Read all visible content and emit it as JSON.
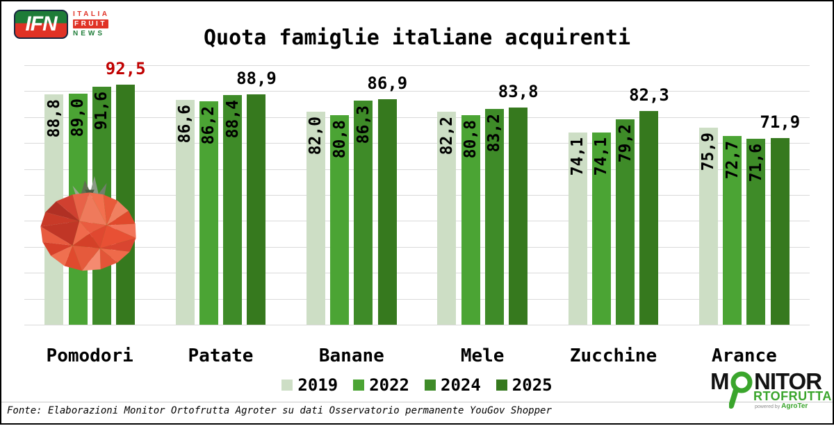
{
  "page": {
    "source": "Fonte: Elaborazioni Monitor Ortofrutta Agroter su dati Osservatorio permanente YouGov Shopper"
  },
  "logos": {
    "ifn": {
      "badge": "IFN",
      "line1": "ITALIA",
      "line2": "FRUIT",
      "line3": "NEWS"
    },
    "monitor": {
      "m": "M",
      "nitor": "NITOR",
      "rtofrutta": "RTOFRUTTA",
      "powered_by": "powered by",
      "agroter": "AgroTer",
      "magnifier_color": "#3aa52c"
    }
  },
  "chart_data": {
    "type": "bar",
    "title": "Quota famiglie italiane acquirenti",
    "categories": [
      "Pomodori",
      "Patate",
      "Banane",
      "Mele",
      "Zucchine",
      "Arance"
    ],
    "series": [
      {
        "name": "2019",
        "color": "#cddec5",
        "values": [
          88.8,
          86.6,
          82.0,
          82.2,
          74.1,
          75.9
        ],
        "labels": [
          "88,8",
          "86,6",
          "82,0",
          "82,2",
          "74,1",
          "75,9"
        ]
      },
      {
        "name": "2022",
        "color": "#4ba434",
        "values": [
          89.0,
          86.2,
          80.8,
          80.8,
          74.1,
          72.7
        ],
        "labels": [
          "89,0",
          "86,2",
          "80,8",
          "80,8",
          "74,1",
          "72,7"
        ]
      },
      {
        "name": "2024",
        "color": "#3e8b28",
        "values": [
          91.6,
          88.4,
          86.3,
          83.2,
          79.2,
          71.6
        ],
        "labels": [
          "91,6",
          "88,4",
          "86,3",
          "83,2",
          "79,2",
          "71,6"
        ]
      },
      {
        "name": "2025",
        "color": "#36791e",
        "values": [
          92.5,
          88.9,
          86.9,
          83.8,
          82.3,
          71.9
        ],
        "labels": [
          "92,5",
          "88,9",
          "86,9",
          "83,8",
          "82,3",
          "71,9"
        ]
      }
    ],
    "highlight": {
      "category_index": 0,
      "series_index": 3,
      "color": "#c00000"
    },
    "value_label_color": "#000000",
    "grid": true,
    "gridline_color": "#d9d9d9",
    "ylim": [
      0,
      100
    ],
    "legend_position": "bottom"
  }
}
